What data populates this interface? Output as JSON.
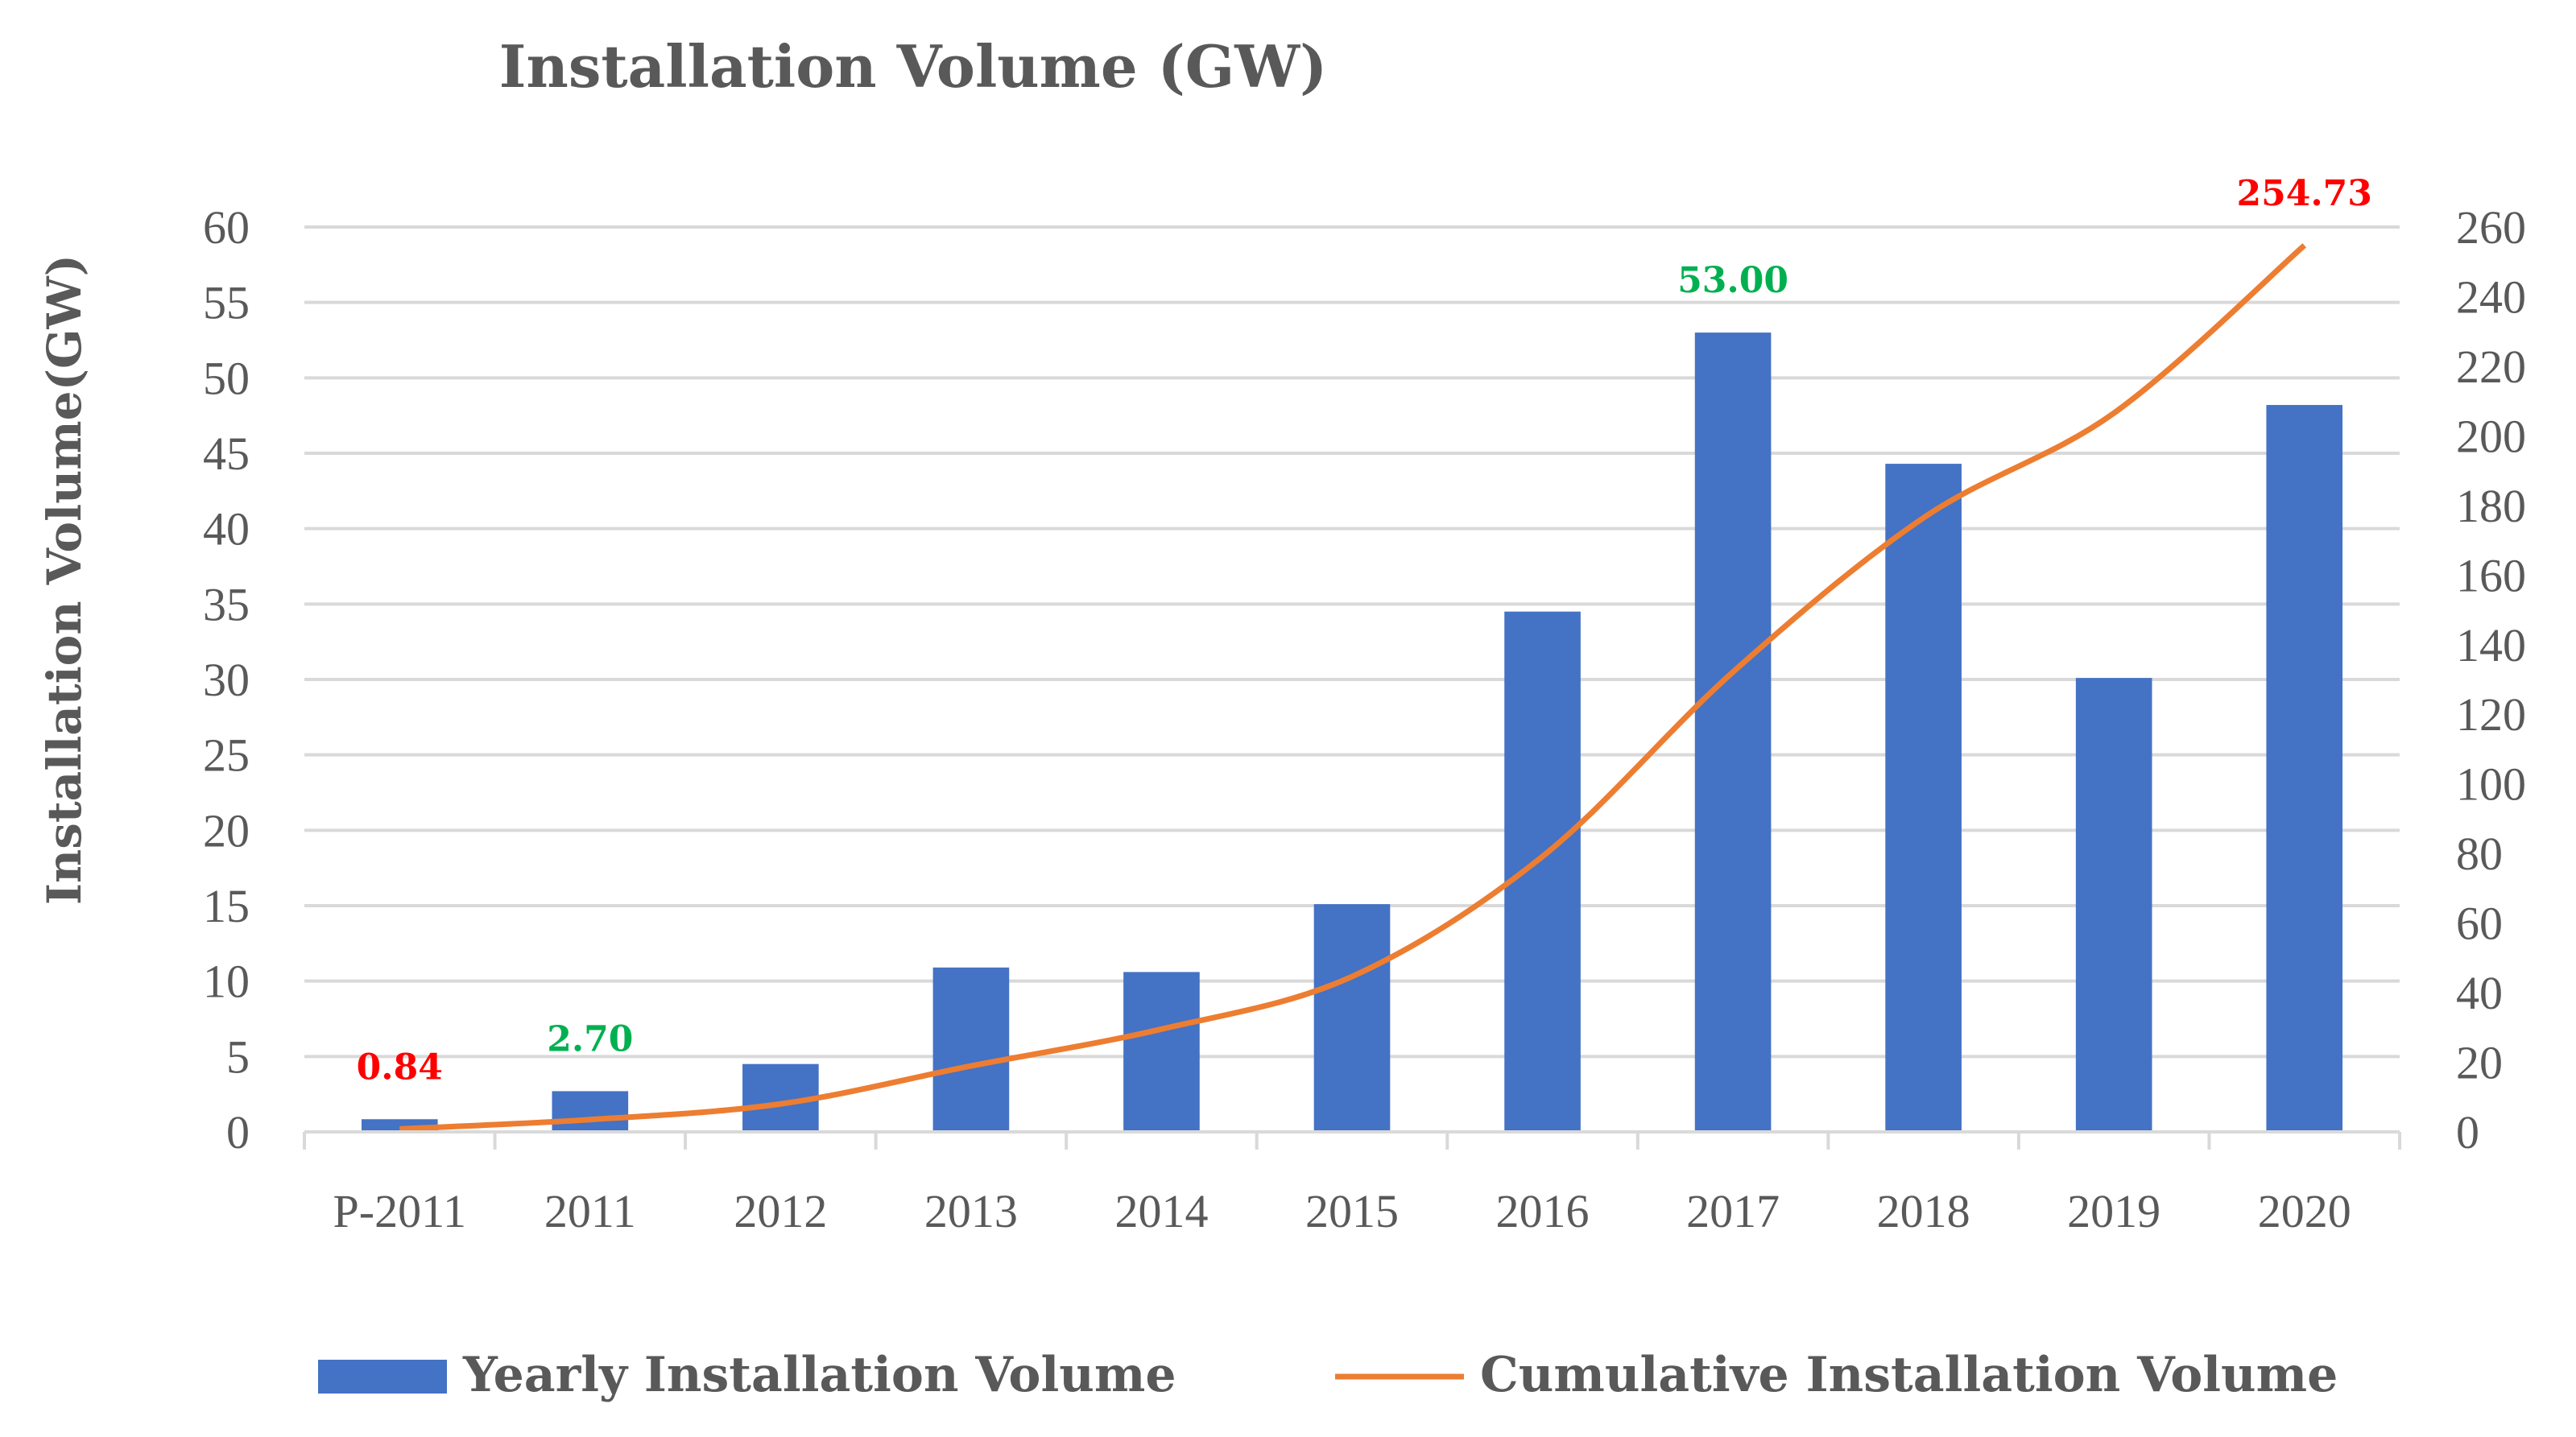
{
  "chart_data": {
    "type": "bar+line",
    "title": "Installation Volume (GW)",
    "ylabel": "Installation Volume(GW)",
    "categories": [
      "P-2011",
      "2011",
      "2012",
      "2013",
      "2014",
      "2015",
      "2016",
      "2017",
      "2018",
      "2019",
      "2020"
    ],
    "series": [
      {
        "name": "Yearly Installation Volume",
        "type": "bar",
        "axis": "left",
        "color": "#4472C4",
        "values": [
          0.84,
          2.7,
          4.5,
          10.9,
          10.6,
          15.1,
          34.5,
          53.0,
          44.3,
          30.1,
          48.2
        ]
      },
      {
        "name": "Cumulative Installation Volume",
        "type": "line",
        "axis": "right",
        "color": "#ED7D31",
        "values": [
          0.84,
          3.54,
          8.04,
          18.94,
          29.54,
          44.64,
          79.14,
          132.14,
          176.44,
          206.54,
          254.73
        ]
      }
    ],
    "ylim_left": [
      0,
      60
    ],
    "yticks_left": [
      0,
      5,
      10,
      15,
      20,
      25,
      30,
      35,
      40,
      45,
      50,
      55,
      60
    ],
    "ylim_right": [
      0,
      260
    ],
    "yticks_right": [
      0,
      20,
      40,
      60,
      80,
      100,
      120,
      140,
      160,
      180,
      200,
      220,
      240,
      260
    ],
    "grid": true,
    "legend": "bottom",
    "annotations": [
      {
        "text": "0.84",
        "series": 0,
        "index": 0,
        "color": "#FF0000"
      },
      {
        "text": "2.70",
        "series": 0,
        "index": 1,
        "color": "#00B050"
      },
      {
        "text": "53.00",
        "series": 0,
        "index": 7,
        "color": "#00B050"
      },
      {
        "text": "254.73",
        "series": 1,
        "index": 10,
        "color": "#FF0000"
      }
    ]
  }
}
